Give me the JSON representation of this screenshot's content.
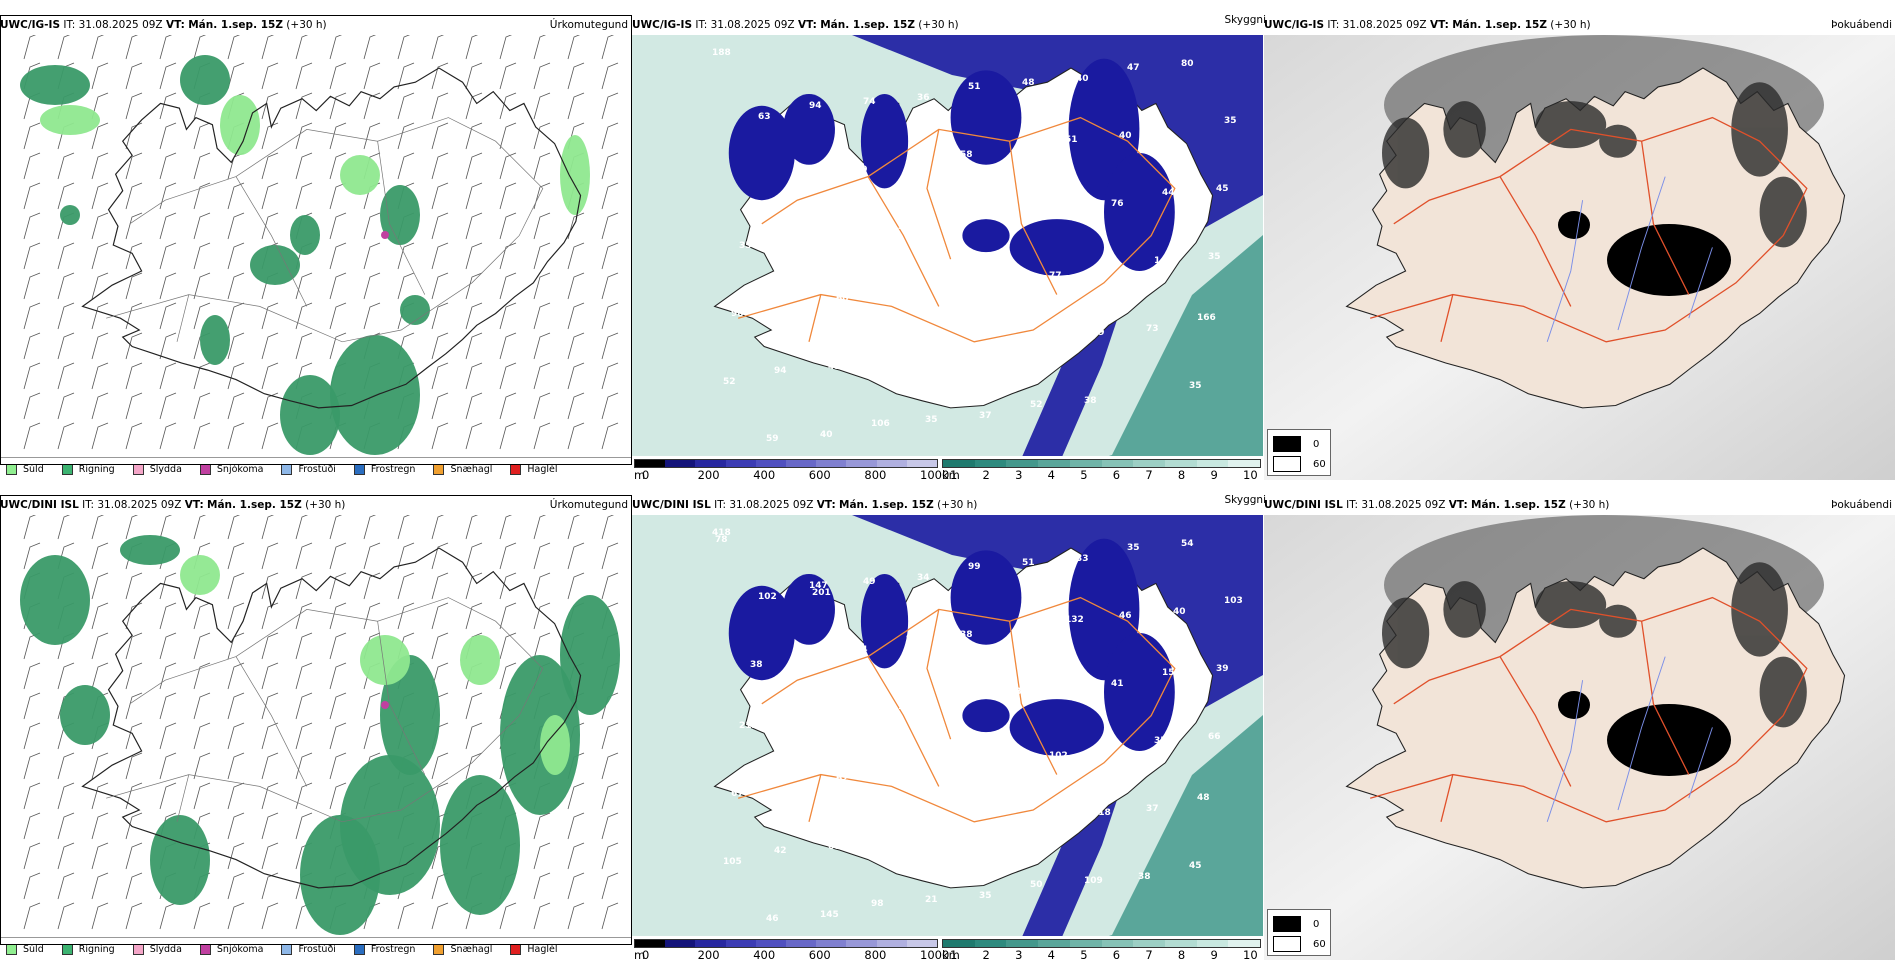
{
  "rows": [
    {
      "model": "UWC/IG-IS",
      "it_label": "IT:",
      "it_value": "31.08.2025 09Z",
      "vt_label": "VT:",
      "vt_value": "Mán. 1.sep. 15Z",
      "lead": "(+30 h)",
      "precip_values": [],
      "vis_values": [
        "188",
        "94",
        "109",
        "97",
        "96",
        "166",
        "94",
        "106",
        "51",
        "51",
        "44",
        "35",
        "60",
        "50",
        "52",
        "47",
        "35",
        "63",
        "37",
        "37",
        "49",
        "35",
        "59",
        "74",
        "58",
        "115",
        "142",
        "98",
        "43",
        "35",
        "48",
        "40",
        "45",
        "41",
        "41",
        "81",
        "38",
        "80",
        "63",
        "39",
        "41",
        "77",
        "73",
        "52",
        "40",
        "36",
        "60",
        "76",
        "35",
        "188",
        "208",
        "37",
        "40"
      ]
    },
    {
      "model": "UWC/DINI ISL",
      "it_label": "IT:",
      "it_value": "31.08.2025 09Z",
      "vt_label": "VT:",
      "vt_value": "Mán. 1.sep. 15Z",
      "lead": "(+30 h)",
      "vis_values": [
        "418",
        "147",
        "95",
        "213",
        "55",
        "48",
        "42",
        "98",
        "99",
        "132",
        "151",
        "212",
        "62",
        "51",
        "50",
        "35",
        "103",
        "40",
        "105",
        "117",
        "118",
        "45",
        "46",
        "49",
        "38",
        "45",
        "35",
        "67",
        "68",
        "21",
        "51",
        "46",
        "39",
        "42",
        "123",
        "123",
        "109",
        "54",
        "102",
        "74",
        "78",
        "102",
        "37",
        "105",
        "145",
        "34",
        "55",
        "41",
        "66",
        "178",
        "45",
        "35",
        "33",
        "40",
        "38",
        "56",
        "100",
        "99",
        "38",
        "78",
        "201",
        "503"
      ]
    }
  ],
  "panel_titles": {
    "precip": "Úrkomutegund",
    "vis": "Skyggni",
    "cloud": "Þokuábendi"
  },
  "precip_legend": [
    {
      "label": "Súld",
      "color": "#90ee90"
    },
    {
      "label": "Rigning",
      "color": "#3cb371"
    },
    {
      "label": "Slydda",
      "color": "#f4a6c8"
    },
    {
      "label": "Snjókoma",
      "color": "#c040a0"
    },
    {
      "label": "Frostúði",
      "color": "#8fb8e8"
    },
    {
      "label": "Frostregn",
      "color": "#2b6ec0"
    },
    {
      "label": "Snæhagl",
      "color": "#f0a030"
    },
    {
      "label": "Haglél",
      "color": "#e02020"
    }
  ],
  "height_scale": {
    "unit": "m",
    "ticks": [
      "0",
      "200",
      "400",
      "600",
      "800",
      "1000"
    ],
    "colors": [
      "#000000",
      "#14147a",
      "#2828a0",
      "#3c3cb4",
      "#5050c0",
      "#6868c8",
      "#8080d0",
      "#9898d8",
      "#b0b0e0",
      "#c8c8e8"
    ]
  },
  "vis_scale": {
    "unit": "km",
    "ticks": [
      "1",
      "2",
      "3",
      "4",
      "5",
      "6",
      "7",
      "8",
      "9",
      "10"
    ],
    "colors": [
      "#1f7a6e",
      "#2e8a7e",
      "#44988c",
      "#5aa69a",
      "#70b4a8",
      "#86c2b6",
      "#9ccfc4",
      "#b2dcd2",
      "#c8e8e0",
      "#e0f2ee"
    ]
  },
  "cloud_legend": [
    {
      "label": "0",
      "color": "#000000"
    },
    {
      "label": "60",
      "color": "#ffffff"
    }
  ],
  "colors": {
    "rain": "#3a9a68",
    "drizzle": "#8fe88f",
    "sea_vis": "#5aa69a",
    "low_vis": "#1a1aa0",
    "land_cloud": "#f2e4d8",
    "roads": "#f0883c",
    "rivers": "#7a8ee8"
  }
}
